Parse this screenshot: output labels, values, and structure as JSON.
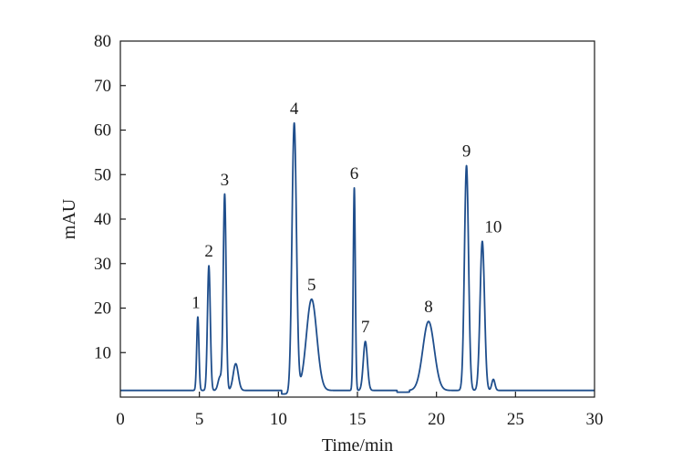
{
  "chart_data": {
    "type": "line",
    "title": "",
    "xlabel": "Time/min",
    "ylabel": "mAU",
    "xlim": [
      0,
      30
    ],
    "ylim": [
      0,
      80
    ],
    "x_ticks": [
      0,
      5,
      10,
      15,
      20,
      25,
      30
    ],
    "y_ticks": [
      10,
      20,
      30,
      40,
      50,
      60,
      70,
      80
    ],
    "grid": false,
    "legend": "none",
    "line_color": "#1f4e8c",
    "baseline": 1.5,
    "series": [
      {
        "peaks": [
          {
            "label": "1",
            "x": 4.9,
            "y": 18
          },
          {
            "label": "2",
            "x": 5.6,
            "y": 29.5
          },
          {
            "label": "3",
            "x": 6.6,
            "y": 45.5
          },
          {
            "label": "4",
            "x": 11.0,
            "y": 61.5
          },
          {
            "label": "5",
            "x": 12.1,
            "y": 22
          },
          {
            "label": "6",
            "x": 14.8,
            "y": 47
          },
          {
            "label": "7",
            "x": 15.5,
            "y": 12.5
          },
          {
            "label": "8",
            "x": 19.5,
            "y": 17
          },
          {
            "label": "9",
            "x": 21.9,
            "y": 52
          },
          {
            "label": "10",
            "x": 22.9,
            "y": 35
          }
        ],
        "minor_peaks": [
          {
            "x": 6.3,
            "y": 4.5
          },
          {
            "x": 7.3,
            "y": 7.5
          },
          {
            "x": 23.6,
            "y": 4
          }
        ]
      }
    ]
  }
}
